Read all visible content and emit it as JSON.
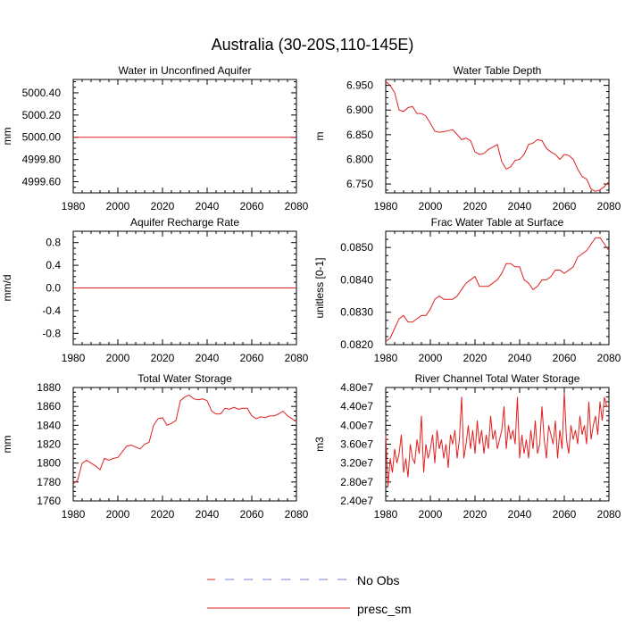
{
  "figure": {
    "title": "Australia (30-20S,110-145E)"
  },
  "legend": [
    {
      "label": "No Obs",
      "style": "dashed",
      "colors": [
        "#7d7dd9",
        "#e02020"
      ]
    },
    {
      "label": "presc_sm",
      "style": "solid",
      "color": "#e02020"
    }
  ],
  "chart_data": [
    {
      "type": "line",
      "title": "Water in Unconfined Aquifer",
      "ylabel": "mm",
      "xlim": [
        1980,
        2080
      ],
      "ylim": [
        4999.5,
        5000.52
      ],
      "xticks": [
        1980,
        2000,
        2020,
        2040,
        2060,
        2080
      ],
      "yticks": [
        "4999.60",
        "4999.80",
        "5000.00",
        "5000.20",
        "5000.40"
      ],
      "ytick_values": [
        4999.6,
        4999.8,
        5000.0,
        5000.2,
        5000.4
      ],
      "series": [
        {
          "name": "presc_sm",
          "color": "#e02020",
          "x": [
            1980,
            2080
          ],
          "y": [
            5000.0,
            5000.0
          ]
        }
      ]
    },
    {
      "type": "line",
      "title": "Water Table Depth",
      "ylabel": "m",
      "xlim": [
        1980,
        2080
      ],
      "ylim": [
        6.732,
        6.962
      ],
      "xticks": [
        1980,
        2000,
        2020,
        2040,
        2060,
        2080
      ],
      "yticks": [
        "6.750",
        "6.800",
        "6.850",
        "6.900",
        "6.950"
      ],
      "ytick_values": [
        6.75,
        6.8,
        6.85,
        6.9,
        6.95
      ],
      "series": [
        {
          "name": "presc_sm",
          "color": "#e02020",
          "x": [
            1980,
            1982,
            1984,
            1986,
            1988,
            1990,
            1992,
            1994,
            1996,
            1998,
            2000,
            2002,
            2004,
            2006,
            2008,
            2010,
            2012,
            2014,
            2016,
            2018,
            2020,
            2022,
            2024,
            2026,
            2028,
            2030,
            2032,
            2034,
            2036,
            2038,
            2040,
            2042,
            2044,
            2046,
            2048,
            2050,
            2052,
            2054,
            2056,
            2058,
            2060,
            2062,
            2064,
            2066,
            2068,
            2070,
            2072,
            2074,
            2076,
            2078,
            2080
          ],
          "y": [
            6.958,
            6.95,
            6.935,
            6.9,
            6.897,
            6.905,
            6.907,
            6.893,
            6.893,
            6.888,
            6.873,
            6.857,
            6.855,
            6.856,
            6.858,
            6.86,
            6.85,
            6.84,
            6.843,
            6.838,
            6.815,
            6.81,
            6.812,
            6.82,
            6.825,
            6.83,
            6.795,
            6.78,
            6.785,
            6.798,
            6.8,
            6.81,
            6.83,
            6.833,
            6.84,
            6.838,
            6.822,
            6.815,
            6.81,
            6.8,
            6.81,
            6.808,
            6.8,
            6.78,
            6.765,
            6.76,
            6.74,
            6.735,
            6.738,
            6.745,
            6.755
          ]
        }
      ]
    },
    {
      "type": "line",
      "title": "Aquifer Recharge Rate",
      "ylabel": "mm/d",
      "xlim": [
        1980,
        2080
      ],
      "ylim": [
        -1.0,
        1.0
      ],
      "xticks": [
        1980,
        2000,
        2020,
        2040,
        2060,
        2080
      ],
      "yticks": [
        "-0.8",
        "-0.4",
        "0.0",
        "0.4",
        "0.8"
      ],
      "ytick_values": [
        -0.8,
        -0.4,
        0.0,
        0.4,
        0.8
      ],
      "series": [
        {
          "name": "presc_sm",
          "color": "#e02020",
          "x": [
            1980,
            2080
          ],
          "y": [
            0.0,
            0.0
          ]
        }
      ]
    },
    {
      "type": "line",
      "title": "Frac Water Table at Surface",
      "ylabel": "unitless [0-1]",
      "xlim": [
        1980,
        2080
      ],
      "ylim": [
        0.082,
        0.0855
      ],
      "xticks": [
        1980,
        2000,
        2020,
        2040,
        2060,
        2080
      ],
      "yticks": [
        "0.0820",
        "0.0830",
        "0.0840",
        "0.0850"
      ],
      "ytick_values": [
        0.082,
        0.083,
        0.084,
        0.085
      ],
      "series": [
        {
          "name": "presc_sm",
          "color": "#e02020",
          "x": [
            1980,
            1982,
            1984,
            1986,
            1988,
            1990,
            1992,
            1994,
            1996,
            1998,
            2000,
            2002,
            2004,
            2006,
            2008,
            2010,
            2012,
            2014,
            2016,
            2018,
            2020,
            2022,
            2024,
            2026,
            2028,
            2030,
            2032,
            2034,
            2036,
            2038,
            2040,
            2042,
            2044,
            2046,
            2048,
            2050,
            2052,
            2054,
            2056,
            2058,
            2060,
            2062,
            2064,
            2066,
            2068,
            2070,
            2072,
            2074,
            2076,
            2078,
            2080
          ],
          "y": [
            0.0821,
            0.0822,
            0.0825,
            0.0828,
            0.0829,
            0.0827,
            0.0827,
            0.0828,
            0.0829,
            0.0829,
            0.0831,
            0.0834,
            0.0835,
            0.0834,
            0.0834,
            0.0834,
            0.0835,
            0.0837,
            0.0839,
            0.084,
            0.0841,
            0.0838,
            0.0838,
            0.0838,
            0.0839,
            0.084,
            0.0842,
            0.0845,
            0.0845,
            0.0844,
            0.0844,
            0.084,
            0.0839,
            0.0837,
            0.0838,
            0.084,
            0.084,
            0.0841,
            0.0843,
            0.0843,
            0.0842,
            0.0843,
            0.0844,
            0.0847,
            0.0848,
            0.0849,
            0.0851,
            0.0853,
            0.0853,
            0.0851,
            0.0849
          ]
        }
      ]
    },
    {
      "type": "line",
      "title": "Total Water Storage",
      "ylabel": "mm",
      "xlim": [
        1980,
        2080
      ],
      "ylim": [
        1760,
        1880
      ],
      "xticks": [
        1980,
        2000,
        2020,
        2040,
        2060,
        2080
      ],
      "yticks": [
        "1760",
        "1780",
        "1800",
        "1820",
        "1840",
        "1860",
        "1880"
      ],
      "ytick_values": [
        1760,
        1780,
        1800,
        1820,
        1840,
        1860,
        1880
      ],
      "series": [
        {
          "name": "presc_sm",
          "color": "#e02020",
          "x": [
            1980,
            1982,
            1984,
            1986,
            1988,
            1990,
            1992,
            1994,
            1996,
            1998,
            2000,
            2002,
            2004,
            2006,
            2008,
            2010,
            2012,
            2014,
            2016,
            2018,
            2020,
            2022,
            2024,
            2026,
            2028,
            2030,
            2032,
            2034,
            2036,
            2038,
            2040,
            2042,
            2044,
            2046,
            2048,
            2050,
            2052,
            2054,
            2056,
            2058,
            2060,
            2062,
            2064,
            2066,
            2068,
            2070,
            2072,
            2074,
            2076,
            2078,
            2080
          ],
          "y": [
            1778,
            1782,
            1800,
            1803,
            1800,
            1797,
            1793,
            1805,
            1803,
            1805,
            1806,
            1812,
            1818,
            1819,
            1817,
            1815,
            1820,
            1822,
            1840,
            1847,
            1848,
            1840,
            1842,
            1845,
            1866,
            1870,
            1872,
            1868,
            1867,
            1868,
            1866,
            1855,
            1852,
            1852,
            1858,
            1857,
            1859,
            1857,
            1858,
            1858,
            1850,
            1847,
            1849,
            1848,
            1850,
            1850,
            1852,
            1855,
            1850,
            1847,
            1844
          ]
        }
      ]
    },
    {
      "type": "line",
      "title": "River Channel Total Water Storage",
      "ylabel": "m3",
      "xlim": [
        1980,
        2080
      ],
      "ylim": [
        24000000.0,
        48000000.0
      ],
      "xticks": [
        1980,
        2000,
        2020,
        2040,
        2060,
        2080
      ],
      "yticks": [
        "2.40e7",
        "2.80e7",
        "3.20e7",
        "3.60e7",
        "4.00e7",
        "4.40e7",
        "4.80e7"
      ],
      "ytick_values": [
        24000000.0,
        28000000.0,
        32000000.0,
        36000000.0,
        40000000.0,
        44000000.0,
        48000000.0
      ],
      "series": [
        {
          "name": "presc_sm",
          "color": "#e02020",
          "x": [
            1980,
            1981,
            1982,
            1983,
            1984,
            1985,
            1986,
            1987,
            1988,
            1989,
            1990,
            1991,
            1992,
            1993,
            1994,
            1995,
            1996,
            1997,
            1998,
            1999,
            2000,
            2001,
            2002,
            2003,
            2004,
            2005,
            2006,
            2007,
            2008,
            2009,
            2010,
            2011,
            2012,
            2013,
            2014,
            2015,
            2016,
            2017,
            2018,
            2019,
            2020,
            2021,
            2022,
            2023,
            2024,
            2025,
            2026,
            2027,
            2028,
            2029,
            2030,
            2031,
            2032,
            2033,
            2034,
            2035,
            2036,
            2037,
            2038,
            2039,
            2040,
            2041,
            2042,
            2043,
            2044,
            2045,
            2046,
            2047,
            2048,
            2049,
            2050,
            2051,
            2052,
            2053,
            2054,
            2055,
            2056,
            2057,
            2058,
            2059,
            2060,
            2061,
            2062,
            2063,
            2064,
            2065,
            2066,
            2067,
            2068,
            2069,
            2070,
            2071,
            2072,
            2073,
            2074,
            2075,
            2076,
            2077,
            2078,
            2079,
            2080
          ],
          "y": [
            38000000.0,
            27000000.0,
            33000000.0,
            30000000.0,
            35000000.0,
            32000000.0,
            34000000.0,
            38000000.0,
            30000000.0,
            33000000.0,
            29000000.0,
            36000000.0,
            33000000.0,
            32000000.0,
            37000000.0,
            34000000.0,
            42000000.0,
            30000000.0,
            36000000.0,
            33000000.0,
            35000000.0,
            38000000.0,
            32000000.0,
            39000000.0,
            35000000.0,
            37000000.0,
            33000000.0,
            36000000.0,
            31000000.0,
            38000000.0,
            36000000.0,
            39000000.0,
            33000000.0,
            37000000.0,
            46000000.0,
            33000000.0,
            36000000.0,
            40000000.0,
            35000000.0,
            39000000.0,
            34000000.0,
            41000000.0,
            36000000.0,
            39000000.0,
            34000000.0,
            38000000.0,
            35000000.0,
            42000000.0,
            37000000.0,
            39000000.0,
            35000000.0,
            37000000.0,
            39000000.0,
            44000000.0,
            35000000.0,
            40000000.0,
            37000000.0,
            39000000.0,
            36000000.0,
            46000000.0,
            33000000.0,
            38000000.0,
            34000000.0,
            37000000.0,
            33000000.0,
            39000000.0,
            35000000.0,
            41000000.0,
            34000000.0,
            36000000.0,
            44000000.0,
            37000000.0,
            33000000.0,
            40000000.0,
            38000000.0,
            36000000.0,
            41000000.0,
            33000000.0,
            39000000.0,
            35000000.0,
            47000000.0,
            37000000.0,
            34000000.0,
            40000000.0,
            37000000.0,
            39000000.0,
            36000000.0,
            42000000.0,
            38000000.0,
            40000000.0,
            36000000.0,
            45000000.0,
            37000000.0,
            40000000.0,
            42000000.0,
            38000000.0,
            45000000.0,
            41000000.0,
            46000000.0,
            44000000.0,
            44000000.0
          ]
        }
      ]
    }
  ]
}
